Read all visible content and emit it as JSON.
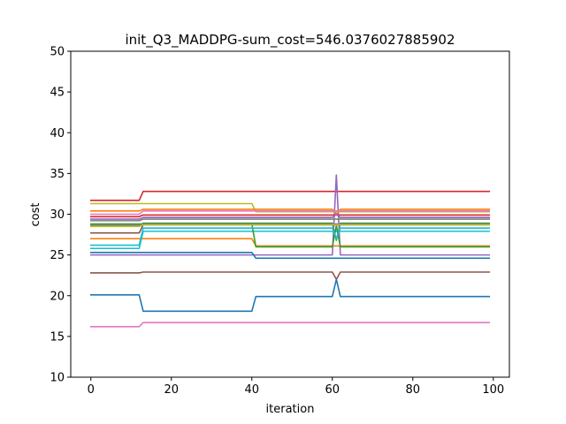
{
  "chart_data": {
    "type": "line",
    "title": "init_Q3_MADDPG-sum_cost=546.0376027885902",
    "xlabel": "iteration",
    "ylabel": "cost",
    "xlim": [
      -5,
      104
    ],
    "ylim": [
      10,
      50
    ],
    "xticks": [
      0,
      20,
      40,
      60,
      80,
      100
    ],
    "yticks": [
      10,
      15,
      20,
      25,
      30,
      35,
      40,
      45,
      50
    ],
    "grid": false,
    "series": [
      {
        "color": "#1f77b4",
        "points": [
          [
            0,
            20.1
          ],
          [
            12,
            20.1
          ],
          [
            13,
            18.1
          ],
          [
            40,
            18.1
          ],
          [
            41,
            19.9
          ],
          [
            60,
            19.9
          ],
          [
            61,
            22.0
          ],
          [
            62,
            19.9
          ],
          [
            99,
            19.9
          ]
        ]
      },
      {
        "color": "#ff7f0e",
        "points": [
          [
            0,
            27.0
          ],
          [
            40,
            27.0
          ],
          [
            41,
            26.1
          ],
          [
            99,
            26.1
          ]
        ]
      },
      {
        "color": "#2ca02c",
        "points": [
          [
            0,
            28.6
          ],
          [
            12,
            28.6
          ],
          [
            13,
            28.9
          ],
          [
            60,
            28.9
          ],
          [
            61,
            26.8
          ],
          [
            62,
            28.9
          ],
          [
            99,
            28.9
          ]
        ]
      },
      {
        "color": "#d62728",
        "points": [
          [
            0,
            31.7
          ],
          [
            12,
            31.7
          ],
          [
            13,
            32.8
          ],
          [
            99,
            32.8
          ]
        ]
      },
      {
        "color": "#9467bd",
        "points": [
          [
            0,
            25.0
          ],
          [
            60,
            25.0
          ],
          [
            61,
            34.8
          ],
          [
            62,
            25.0
          ],
          [
            99,
            25.0
          ]
        ]
      },
      {
        "color": "#8c564b",
        "points": [
          [
            0,
            22.8
          ],
          [
            12,
            22.8
          ],
          [
            13,
            22.9
          ],
          [
            60,
            22.9
          ],
          [
            61,
            22.0
          ],
          [
            62,
            22.9
          ],
          [
            99,
            22.9
          ]
        ]
      },
      {
        "color": "#e377c2",
        "points": [
          [
            0,
            16.2
          ],
          [
            12,
            16.2
          ],
          [
            13,
            16.7
          ],
          [
            99,
            16.7
          ]
        ]
      },
      {
        "color": "#7f7f7f",
        "points": [
          [
            0,
            29.2
          ],
          [
            12,
            29.2
          ],
          [
            13,
            29.4
          ],
          [
            99,
            29.4
          ]
        ]
      },
      {
        "color": "#bcbd22",
        "points": [
          [
            0,
            31.3
          ],
          [
            40,
            31.3
          ],
          [
            41,
            30.3
          ],
          [
            99,
            30.3
          ]
        ]
      },
      {
        "color": "#17becf",
        "points": [
          [
            0,
            25.8
          ],
          [
            12,
            25.8
          ],
          [
            13,
            27.9
          ],
          [
            99,
            27.9
          ]
        ]
      },
      {
        "color": "#1f77b4",
        "points": [
          [
            0,
            25.3
          ],
          [
            40,
            25.3
          ],
          [
            41,
            24.6
          ],
          [
            99,
            24.6
          ]
        ]
      },
      {
        "color": "#ff7f0e",
        "points": [
          [
            0,
            30.4
          ],
          [
            12,
            30.4
          ],
          [
            13,
            30.6
          ],
          [
            60,
            30.6
          ],
          [
            61,
            30.0
          ],
          [
            62,
            30.6
          ],
          [
            99,
            30.6
          ]
        ]
      },
      {
        "color": "#2ca02c",
        "points": [
          [
            0,
            28.8
          ],
          [
            40,
            28.8
          ],
          [
            41,
            26.0
          ],
          [
            60,
            26.0
          ],
          [
            61,
            28.6
          ],
          [
            62,
            26.0
          ],
          [
            99,
            26.0
          ]
        ]
      },
      {
        "color": "#d62728",
        "points": [
          [
            0,
            29.7
          ],
          [
            12,
            29.7
          ],
          [
            13,
            29.9
          ],
          [
            99,
            29.9
          ]
        ]
      },
      {
        "color": "#9467bd",
        "points": [
          [
            0,
            29.4
          ],
          [
            12,
            29.4
          ],
          [
            13,
            29.6
          ],
          [
            60,
            29.6
          ],
          [
            61,
            30.0
          ],
          [
            62,
            29.6
          ],
          [
            99,
            29.6
          ]
        ]
      },
      {
        "color": "#8c564b",
        "points": [
          [
            0,
            27.7
          ],
          [
            12,
            27.7
          ],
          [
            13,
            28.7
          ],
          [
            99,
            28.7
          ]
        ]
      },
      {
        "color": "#e377c2",
        "points": [
          [
            0,
            30.0
          ],
          [
            12,
            30.0
          ],
          [
            13,
            30.4
          ],
          [
            99,
            30.4
          ]
        ]
      },
      {
        "color": "#7f7f7f",
        "points": [
          [
            0,
            28.7
          ],
          [
            12,
            28.7
          ],
          [
            13,
            28.8
          ],
          [
            99,
            28.8
          ]
        ]
      },
      {
        "color": "#bcbd22",
        "points": [
          [
            0,
            28.5
          ],
          [
            12,
            28.5
          ],
          [
            13,
            28.7
          ],
          [
            99,
            28.7
          ]
        ]
      },
      {
        "color": "#17becf",
        "points": [
          [
            0,
            26.2
          ],
          [
            12,
            26.2
          ],
          [
            13,
            28.3
          ],
          [
            60,
            28.3
          ],
          [
            61,
            27.0
          ],
          [
            62,
            28.3
          ],
          [
            99,
            28.3
          ]
        ]
      }
    ]
  }
}
